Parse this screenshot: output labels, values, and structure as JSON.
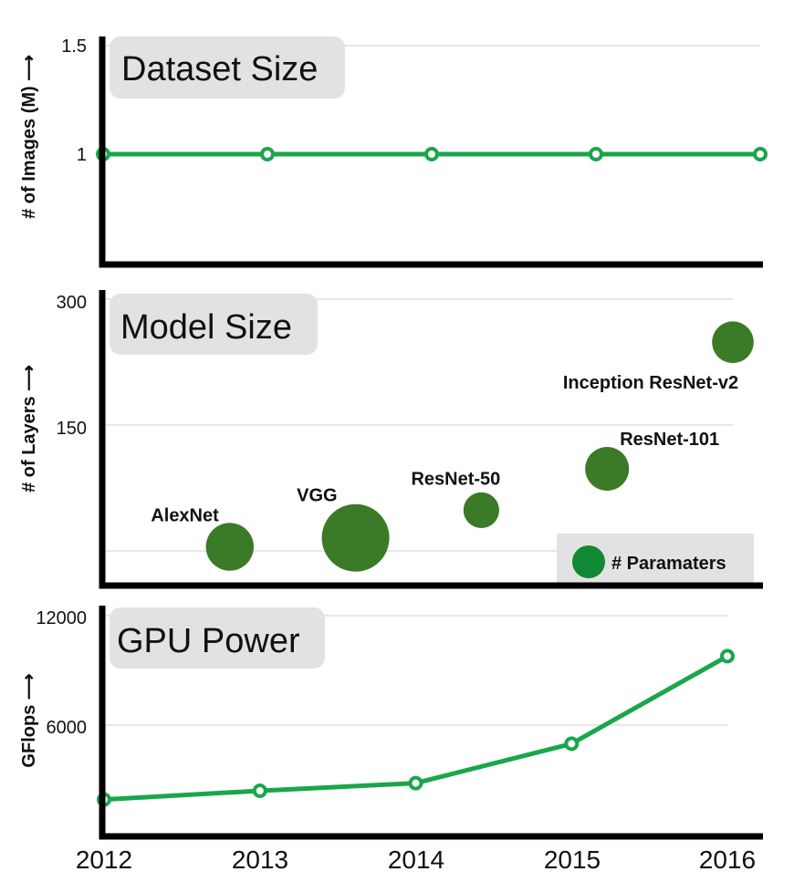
{
  "colors": {
    "line": "#1aa64b",
    "bubble": "#3b7a27",
    "legend_marker": "#118833",
    "title_box": "#e2e2e2",
    "legend_box": "#e2e2e2"
  },
  "x_axis": {
    "ticks": [
      "2012",
      "2013",
      "2014",
      "2015",
      "2016"
    ]
  },
  "chart_data": [
    {
      "type": "line",
      "title": "Dataset Size",
      "ylabel": "# of Images (M) ⟶",
      "ylim": [
        0.5,
        1.5
      ],
      "y_ticks": [
        {
          "value": 1,
          "label": "1"
        },
        {
          "value": 1.5,
          "label": "1.5"
        }
      ],
      "x": [
        2012,
        2013,
        2014,
        2015,
        2016
      ],
      "series": [
        {
          "values": [
            1,
            1,
            1,
            1,
            1
          ]
        }
      ]
    },
    {
      "type": "scatter",
      "title": "Model Size",
      "ylabel": "# of Layers ⟶",
      "ylim": [
        -45,
        310
      ],
      "y_ticks": [
        {
          "value": 150,
          "label": "150"
        },
        {
          "value": 300,
          "label": "300"
        }
      ],
      "grid_values": [
        0,
        150,
        300
      ],
      "legend": {
        "label": "# Paramaters"
      },
      "points": [
        {
          "label": "AlexNet",
          "x": 2012.8,
          "y": 5,
          "size": 0.5
        },
        {
          "label": "VGG",
          "x": 2013.6,
          "y": 16,
          "size": 1.0
        },
        {
          "label": "ResNet-50",
          "x": 2014.4,
          "y": 50,
          "size": 0.28
        },
        {
          "label": "ResNet-101",
          "x": 2015.2,
          "y": 101,
          "size": 0.42
        },
        {
          "label": "Inception ResNet-v2",
          "x": 2016.0,
          "y": 257,
          "size": 0.38
        }
      ]
    },
    {
      "type": "line",
      "title": "GPU Power",
      "ylabel": "GFlops ⟶",
      "ylim": [
        2000,
        12000
      ],
      "y_ticks": [
        {
          "value": 6000,
          "label": "6000"
        },
        {
          "value": 12000,
          "label": "12000"
        }
      ],
      "x": [
        2012,
        2013,
        2014,
        2015,
        2016
      ],
      "series": [
        {
          "values": [
            3600,
            4000,
            4350,
            6150,
            10150
          ]
        }
      ]
    }
  ]
}
